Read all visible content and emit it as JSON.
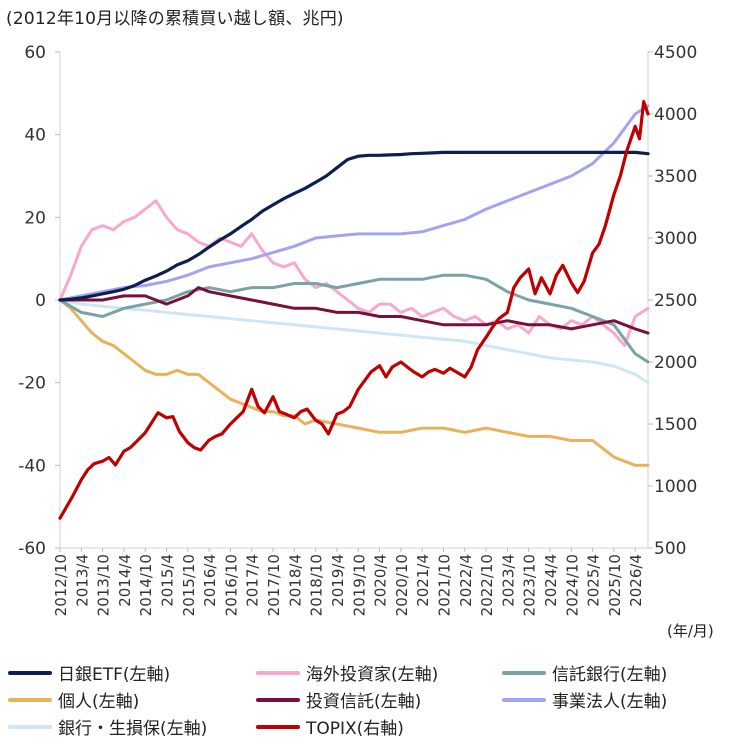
{
  "title": "(2012年10月以降の累積買い越し額、兆円)",
  "unit_label": "(年/月)",
  "chart_data": {
    "type": "line",
    "x_categories": [
      "2012/10",
      "2013/4",
      "2013/10",
      "2014/4",
      "2014/10",
      "2015/4",
      "2015/10",
      "2016/4",
      "2016/10",
      "2017/4",
      "2017/10",
      "2018/4",
      "2018/10",
      "2019/4",
      "2019/10",
      "2020/4",
      "2020/10",
      "2021/4",
      "2021/10",
      "2022/4",
      "2022/10",
      "2023/4",
      "2023/10",
      "2024/4",
      "2024/10",
      "2025/4",
      "2025/10",
      "2026/4"
    ],
    "y_left": {
      "min": -60,
      "max": 60,
      "ticks": [
        60,
        40,
        20,
        0,
        -20,
        -40,
        -60
      ]
    },
    "y_right": {
      "min": 500,
      "max": 4500,
      "ticks": [
        4500,
        4000,
        3500,
        3000,
        2500,
        2000,
        1500,
        1000,
        500
      ]
    },
    "grid": false,
    "legend_position": "bottom",
    "series": [
      {
        "name": "日銀ETF(左軸)",
        "axis": "left",
        "color": "#0d1f4f",
        "width": 3.2,
        "x": [
          0,
          0.5,
          1,
          1.5,
          2,
          2.5,
          3,
          3.5,
          4,
          4.5,
          5,
          5.5,
          6,
          6.5,
          7,
          7.5,
          8,
          8.5,
          9,
          9.5,
          10,
          10.5,
          11,
          11.5,
          12,
          12.5,
          13,
          13.5,
          14,
          14.5,
          15,
          15.5,
          16,
          16.5,
          17,
          17.5,
          18,
          19,
          20,
          21,
          22,
          23,
          24,
          25,
          26,
          27,
          27.6
        ],
        "values": [
          0,
          0.2,
          0.5,
          1,
          1.5,
          2,
          2.6,
          3.5,
          4.8,
          5.8,
          7,
          8.5,
          9.5,
          11,
          12.8,
          14.5,
          16,
          17.8,
          19.5,
          21.5,
          23,
          24.5,
          25.8,
          27,
          28.5,
          30,
          32,
          34,
          34.8,
          35,
          35,
          35.1,
          35.2,
          35.4,
          35.5,
          35.6,
          35.7,
          35.7,
          35.7,
          35.7,
          35.7,
          35.7,
          35.7,
          35.7,
          35.7,
          35.7,
          35.4
        ]
      },
      {
        "name": "海外投資家(左軸)",
        "axis": "left",
        "color": "#f7a8cf",
        "width": 3.0,
        "x": [
          0,
          0.5,
          1,
          1.5,
          2,
          2.5,
          3,
          3.5,
          4,
          4.5,
          5,
          5.5,
          6,
          6.5,
          7,
          7.5,
          8,
          8.5,
          9,
          9.5,
          10,
          10.5,
          11,
          11.5,
          12,
          12.5,
          13,
          13.5,
          14,
          14.5,
          15,
          15.5,
          16,
          16.5,
          17,
          17.5,
          18,
          18.5,
          19,
          19.5,
          20,
          20.5,
          21,
          21.5,
          22,
          22.5,
          23,
          23.5,
          24,
          24.5,
          25,
          25.5,
          26,
          26.5,
          27,
          27.6
        ],
        "values": [
          0,
          6,
          13,
          17,
          18,
          17,
          19,
          20,
          22,
          24,
          20,
          17,
          16,
          14,
          13,
          15,
          14,
          13,
          16,
          12,
          9,
          8,
          9,
          5,
          3,
          4,
          2,
          0,
          -2,
          -3,
          -1,
          -1,
          -3,
          -2,
          -4,
          -3,
          -2,
          -4,
          -5,
          -4,
          -6,
          -5,
          -7,
          -6,
          -8,
          -4,
          -6,
          -7,
          -5,
          -6,
          -4,
          -6,
          -8,
          -11,
          -4,
          -2
        ]
      },
      {
        "name": "信託銀行(左軸)",
        "axis": "left",
        "color": "#79a3a5",
        "width": 3.0,
        "x": [
          0,
          1,
          2,
          3,
          4,
          5,
          6,
          7,
          8,
          9,
          10,
          11,
          12,
          13,
          14,
          15,
          16,
          17,
          18,
          19,
          20,
          21,
          22,
          23,
          24,
          25,
          26,
          27,
          27.6
        ],
        "values": [
          0,
          -3,
          -4,
          -2,
          -1,
          0,
          2,
          3,
          2,
          3,
          3,
          4,
          4,
          3,
          4,
          5,
          5,
          5,
          6,
          6,
          5,
          2,
          0,
          -1,
          -2,
          -4,
          -6,
          -13,
          -15
        ]
      },
      {
        "name": "個人(左軸)",
        "axis": "left",
        "color": "#e8b25a",
        "width": 3.0,
        "x": [
          0,
          0.5,
          1,
          1.5,
          2,
          2.5,
          3,
          3.5,
          4,
          4.5,
          5,
          5.5,
          6,
          6.5,
          7,
          7.5,
          8,
          8.5,
          9,
          9.5,
          10,
          10.5,
          11,
          11.5,
          12,
          13,
          14,
          15,
          16,
          17,
          18,
          19,
          20,
          21,
          22,
          23,
          24,
          25,
          26,
          27,
          27.6
        ],
        "values": [
          0,
          -2,
          -5,
          -8,
          -10,
          -11,
          -13,
          -15,
          -17,
          -18,
          -18,
          -17,
          -18,
          -18,
          -20,
          -22,
          -24,
          -25,
          -26,
          -27,
          -27,
          -28,
          -28,
          -30,
          -29,
          -30,
          -31,
          -32,
          -32,
          -31,
          -31,
          -32,
          -31,
          -32,
          -33,
          -33,
          -34,
          -34,
          -38,
          -40,
          -40
        ]
      },
      {
        "name": "投資信託(左軸)",
        "axis": "left",
        "color": "#7a0f3e",
        "width": 3.0,
        "x": [
          0,
          1,
          2,
          3,
          4,
          5,
          6,
          6.5,
          7,
          8,
          9,
          10,
          11,
          12,
          13,
          14,
          15,
          16,
          17,
          18,
          19,
          20,
          21,
          22,
          23,
          24,
          25,
          26,
          27,
          27.6
        ],
        "values": [
          0,
          0,
          0,
          1,
          1,
          -1,
          1,
          3,
          2,
          1,
          0,
          -1,
          -2,
          -2,
          -3,
          -3,
          -4,
          -4,
          -5,
          -6,
          -6,
          -6,
          -5,
          -6,
          -6,
          -7,
          -6,
          -5,
          -7,
          -8
        ]
      },
      {
        "name": "事業法人(左軸)",
        "axis": "left",
        "color": "#a3a3f2",
        "width": 3.0,
        "x": [
          0,
          1,
          2,
          3,
          4,
          5,
          6,
          7,
          8,
          9,
          10,
          11,
          12,
          13,
          14,
          15,
          16,
          17,
          18,
          19,
          20,
          21,
          22,
          23,
          24,
          25,
          26,
          27,
          27.6
        ],
        "values": [
          0,
          1,
          2,
          3,
          3.5,
          4.5,
          6,
          8,
          9,
          10,
          11.5,
          13,
          15,
          15.5,
          16,
          16,
          16,
          16.5,
          18,
          19.5,
          22,
          24,
          26,
          28,
          30,
          33,
          38,
          45,
          47
        ]
      },
      {
        "name": "銀行・生損保(左軸)",
        "axis": "left",
        "color": "#cfe6f7",
        "width": 3.0,
        "x": [
          0,
          1,
          2,
          3,
          4,
          5,
          6,
          7,
          8,
          9,
          10,
          11,
          12,
          13,
          14,
          15,
          16,
          17,
          18,
          19,
          20,
          21,
          22,
          23,
          24,
          25,
          26,
          27,
          27.6
        ],
        "values": [
          0,
          -1,
          -1.5,
          -2,
          -2.5,
          -3,
          -3.5,
          -4,
          -4.5,
          -5,
          -5.5,
          -6,
          -6.5,
          -7,
          -7.5,
          -8,
          -8.5,
          -9,
          -9.5,
          -10,
          -11,
          -12,
          -13,
          -14,
          -14.5,
          -15,
          -16,
          -18,
          -20
        ]
      },
      {
        "name": "TOPIX(右軸)",
        "axis": "right",
        "color": "#c00000",
        "width": 3.2,
        "x": [
          0,
          0.3,
          0.6,
          1,
          1.3,
          1.6,
          2,
          2.3,
          2.6,
          3,
          3.3,
          3.6,
          4,
          4.3,
          4.6,
          5,
          5.3,
          5.6,
          6,
          6.3,
          6.6,
          7,
          7.3,
          7.6,
          8,
          8.3,
          8.6,
          9,
          9.3,
          9.6,
          10,
          10.3,
          10.6,
          11,
          11.3,
          11.6,
          12,
          12.3,
          12.6,
          13,
          13.3,
          13.6,
          14,
          14.3,
          14.6,
          15,
          15.3,
          15.6,
          16,
          16.3,
          16.6,
          17,
          17.3,
          17.6,
          18,
          18.3,
          18.6,
          19,
          19.3,
          19.6,
          20,
          20.3,
          20.6,
          21,
          21.3,
          21.6,
          22,
          22.3,
          22.6,
          23,
          23.3,
          23.6,
          24,
          24.3,
          24.6,
          25,
          25.3,
          25.6,
          26,
          26.3,
          26.6,
          27,
          27.2,
          27.4,
          27.6
        ],
        "values": [
          740,
          830,
          920,
          1050,
          1130,
          1180,
          1200,
          1230,
          1170,
          1280,
          1310,
          1360,
          1430,
          1510,
          1590,
          1550,
          1560,
          1440,
          1350,
          1310,
          1290,
          1370,
          1400,
          1420,
          1500,
          1550,
          1600,
          1780,
          1640,
          1590,
          1720,
          1600,
          1580,
          1550,
          1600,
          1620,
          1530,
          1500,
          1420,
          1580,
          1600,
          1640,
          1780,
          1850,
          1920,
          1970,
          1880,
          1960,
          2000,
          1960,
          1920,
          1880,
          1920,
          1940,
          1910,
          1950,
          1920,
          1880,
          1960,
          2100,
          2200,
          2280,
          2350,
          2400,
          2600,
          2680,
          2750,
          2550,
          2680,
          2550,
          2700,
          2780,
          2640,
          2560,
          2650,
          2880,
          2950,
          3100,
          3350,
          3500,
          3700,
          3900,
          3800,
          4100,
          4000
        ]
      }
    ]
  },
  "legend": [
    {
      "label": "日銀ETF(左軸)",
      "color": "#0d1f4f"
    },
    {
      "label": "海外投資家(左軸)",
      "color": "#f7a8cf"
    },
    {
      "label": "信託銀行(左軸)",
      "color": "#79a3a5"
    },
    {
      "label": "個人(左軸)",
      "color": "#e8b25a"
    },
    {
      "label": "投資信託(左軸)",
      "color": "#7a0f3e"
    },
    {
      "label": "事業法人(左軸)",
      "color": "#a3a3f2"
    },
    {
      "label": "銀行・生損保(左軸)",
      "color": "#cfe6f7"
    },
    {
      "label": "TOPIX(右軸)",
      "color": "#c00000"
    }
  ]
}
